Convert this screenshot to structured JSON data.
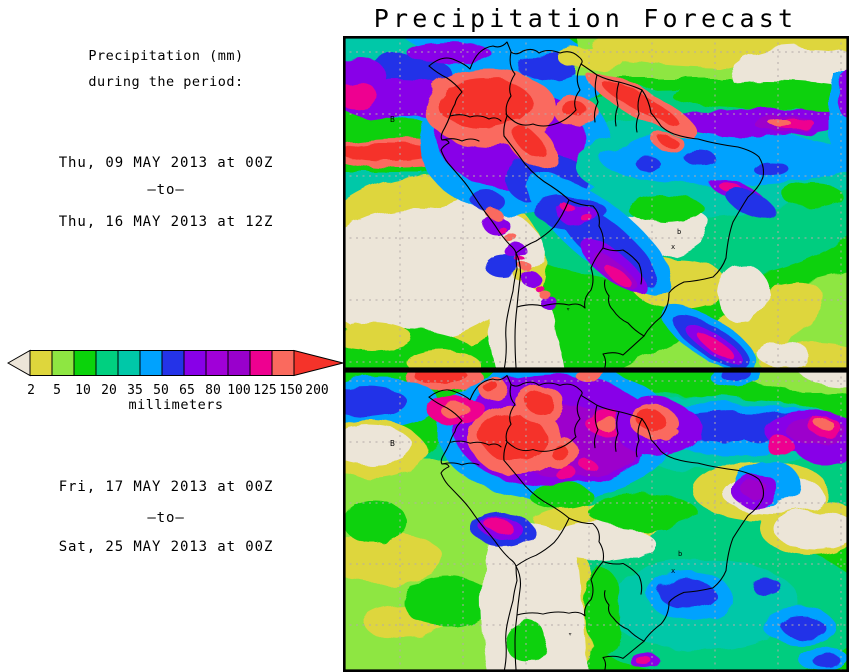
{
  "title": "Precipitation Forecast",
  "sidebar": {
    "heading": {
      "line1": "Precipitation (mm)",
      "line2": "during the period:"
    },
    "period1": {
      "start": "Thu, 09 MAY 2013 at 00Z",
      "separator": "–to–",
      "end": "Thu, 16 MAY 2013 at 12Z"
    },
    "period2": {
      "start": "Fri, 17 MAY 2013 at 00Z",
      "separator": "–to–",
      "end": "Sat, 25 MAY 2013 at 00Z"
    }
  },
  "legend": {
    "unit_label": "millimeters",
    "tick_labels": [
      "2",
      "5",
      "10",
      "20",
      "35",
      "50",
      "65",
      "80",
      "100",
      "125",
      "150",
      "200"
    ],
    "box_colors": [
      "#ded63c",
      "#8ee642",
      "#0bd30b",
      "#00d080",
      "#00c8a8",
      "#00a2fe",
      "#2433e8",
      "#8800e8",
      "#a000d8",
      "#9900cc",
      "#ee0090",
      "#fa6a5e"
    ],
    "below_min_color": "#ece5d8",
    "above_max_color": "#f5332a"
  },
  "map_markers": {
    "station": "B",
    "cross": "x",
    "triangle": "▿",
    "dot": "b"
  },
  "palette": {
    "beige": "#ece5d8",
    "yellow": "#ded63c",
    "ygreen": "#8ee642",
    "green": "#11d111",
    "seagreen": "#00cd7f",
    "teal": "#00c8a8",
    "cyan": "#00a2fe",
    "blue": "#2433e8",
    "violet": "#8800e8",
    "purple": "#9d00cc",
    "magenta": "#ee0090",
    "salmon": "#fa6a5e",
    "red": "#f5332a",
    "grid": "#b4aaaa",
    "coast": "#000000",
    "frame": "#000000",
    "background": "#ffffff"
  }
}
